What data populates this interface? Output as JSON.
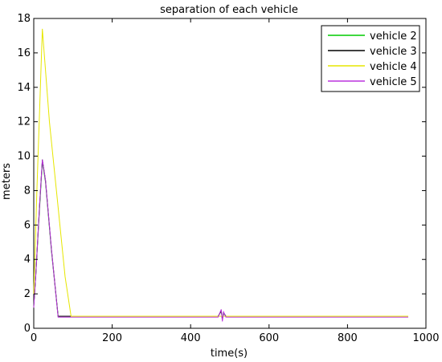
{
  "chart_data": {
    "type": "line",
    "title": "separation of each vehicle",
    "xlabel": "time(s)",
    "ylabel": "meters",
    "xlim": [
      0,
      1000
    ],
    "ylim": [
      0,
      18
    ],
    "xticks": [
      0,
      200,
      400,
      600,
      800,
      1000
    ],
    "yticks": [
      0,
      2,
      4,
      6,
      8,
      10,
      12,
      14,
      16,
      18
    ],
    "grid": false,
    "legend_position": "top-right",
    "series": [
      {
        "name": "vehicle 2",
        "color": "#00cc00",
        "x": [
          0,
          5,
          15,
          22,
          30,
          45,
          62,
          66,
          100,
          200,
          300,
          400,
          470,
          478,
          481,
          484,
          490,
          600,
          700,
          800,
          900,
          955
        ],
        "y": [
          1.3,
          3.0,
          7.0,
          9.7,
          8.5,
          4.5,
          0.7,
          0.7,
          0.7,
          0.7,
          0.7,
          0.7,
          0.7,
          1.0,
          0.5,
          0.9,
          0.7,
          0.7,
          0.7,
          0.7,
          0.7,
          0.7
        ]
      },
      {
        "name": "vehicle 3",
        "color": "#000000",
        "x": [
          0,
          5,
          15,
          22,
          30,
          45,
          62,
          66,
          100,
          200,
          300,
          400,
          470,
          478,
          481,
          484,
          490,
          600,
          700,
          800,
          900,
          955
        ],
        "y": [
          1.3,
          3.0,
          7.2,
          9.8,
          8.6,
          4.6,
          0.7,
          0.7,
          0.7,
          0.7,
          0.7,
          0.7,
          0.7,
          1.0,
          0.5,
          0.9,
          0.7,
          0.7,
          0.7,
          0.7,
          0.7,
          0.7
        ]
      },
      {
        "name": "vehicle 4",
        "color": "#e6e600",
        "x": [
          0,
          8,
          22,
          40,
          60,
          80,
          95,
          100,
          200,
          300,
          400,
          500,
          600,
          700,
          800,
          900,
          955
        ],
        "y": [
          2.0,
          8.0,
          17.4,
          12.0,
          7.5,
          3.0,
          0.7,
          0.7,
          0.7,
          0.7,
          0.7,
          0.7,
          0.7,
          0.7,
          0.7,
          0.7,
          0.7
        ]
      },
      {
        "name": "vehicle 5",
        "color": "#bb33dd",
        "x": [
          0,
          5,
          15,
          22,
          30,
          45,
          62,
          66,
          100,
          200,
          300,
          400,
          470,
          478,
          481,
          484,
          490,
          600,
          700,
          800,
          900,
          955
        ],
        "y": [
          1.2,
          3.0,
          7.2,
          9.8,
          8.6,
          4.6,
          0.65,
          0.65,
          0.65,
          0.65,
          0.65,
          0.65,
          0.65,
          1.1,
          0.4,
          0.95,
          0.65,
          0.65,
          0.65,
          0.65,
          0.65,
          0.65
        ]
      }
    ]
  }
}
